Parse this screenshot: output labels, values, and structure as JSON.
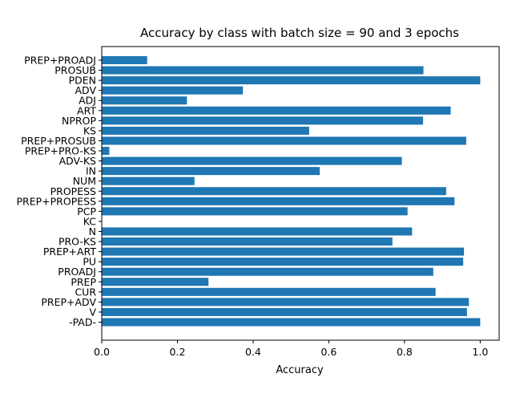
{
  "chart_data": {
    "type": "bar",
    "orientation": "horizontal",
    "title": "Accuracy by class with batch size = 90 and 3 epochs",
    "xlabel": "Accuracy",
    "ylabel": "",
    "xlim": [
      0,
      1.05
    ],
    "xticks": [
      "0.0",
      "0.2",
      "0.4",
      "0.6",
      "0.8",
      "1.0"
    ],
    "grid": false,
    "bar_color": "#1f77b4",
    "categories": [
      "-PAD-",
      "V",
      "PREP+ADV",
      "CUR",
      "PREP",
      "PROADJ",
      "PU",
      "PREP+ART",
      "PRO-KS",
      "N",
      "KC",
      "PCP",
      "PREP+PROPESS",
      "PROPESS",
      "NUM",
      "IN",
      "ADV-KS",
      "PREP+PRO-KS",
      "PREP+PROSUB",
      "KS",
      "NPROP",
      "ART",
      "ADJ",
      "ADV",
      "PDEN",
      "PROSUB",
      "PREP+PROADJ"
    ],
    "values": [
      1.0,
      0.965,
      0.97,
      0.882,
      0.282,
      0.876,
      0.955,
      0.957,
      0.768,
      0.82,
      0.0,
      0.808,
      0.932,
      0.91,
      0.245,
      0.576,
      0.793,
      0.02,
      0.963,
      0.548,
      0.849,
      0.922,
      0.225,
      0.373,
      1.0,
      0.85,
      0.12
    ]
  }
}
